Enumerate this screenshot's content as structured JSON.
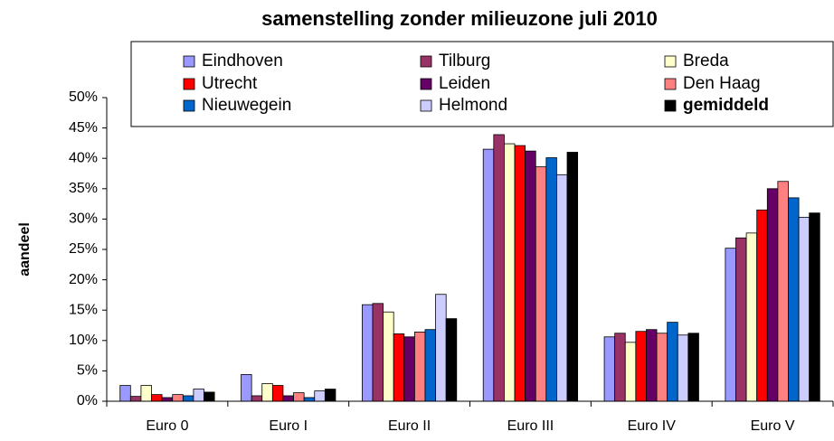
{
  "chart_data": {
    "type": "bar",
    "title": "samenstelling zonder milieuzone juli 2010",
    "y_label": "aandeel",
    "categories": [
      "Euro 0",
      "Euro I",
      "Euro II",
      "Euro III",
      "Euro IV",
      "Euro V"
    ],
    "ylim": [
      0,
      50
    ],
    "yticks": [
      {
        "value": 0,
        "label": "0%"
      },
      {
        "value": 5,
        "label": "5%"
      },
      {
        "value": 10,
        "label": "10%"
      },
      {
        "value": 15,
        "label": "15%"
      },
      {
        "value": 20,
        "label": "20%"
      },
      {
        "value": 25,
        "label": "25%"
      },
      {
        "value": 30,
        "label": "30%"
      },
      {
        "value": 35,
        "label": "35%"
      },
      {
        "value": 40,
        "label": "40%"
      },
      {
        "value": 45,
        "label": "45%"
      },
      {
        "value": 50,
        "label": "50%"
      }
    ],
    "legend": "top",
    "series": [
      {
        "name": "Eindhoven",
        "color": "#9999ff",
        "values": [
          2.6,
          4.4,
          15.9,
          41.5,
          10.6,
          25.2
        ]
      },
      {
        "name": "Tilburg",
        "color": "#993366",
        "values": [
          0.8,
          0.9,
          16.1,
          43.9,
          11.2,
          26.9
        ]
      },
      {
        "name": "Breda",
        "color": "#ffffcc",
        "values": [
          2.6,
          2.9,
          14.7,
          42.4,
          9.7,
          27.7
        ]
      },
      {
        "name": "Utrecht",
        "color": "#ff0000",
        "values": [
          1.1,
          2.6,
          11.1,
          42.1,
          11.5,
          31.5
        ]
      },
      {
        "name": "Leiden",
        "color": "#660066",
        "values": [
          0.6,
          0.9,
          10.6,
          41.2,
          11.8,
          35.0
        ]
      },
      {
        "name": "Den Haag",
        "color": "#ff8080",
        "values": [
          1.1,
          1.4,
          11.4,
          38.6,
          11.2,
          36.2
        ]
      },
      {
        "name": "Nieuwegein",
        "color": "#0066cc",
        "values": [
          0.9,
          0.6,
          11.8,
          40.1,
          13.0,
          33.5
        ]
      },
      {
        "name": "Helmond",
        "color": "#ccccff",
        "values": [
          2.0,
          1.7,
          17.6,
          37.3,
          10.9,
          30.3
        ]
      },
      {
        "name": "gemiddeld",
        "color": "#000000",
        "values": [
          1.5,
          2.0,
          13.6,
          41.0,
          11.2,
          31.0
        ]
      }
    ]
  }
}
